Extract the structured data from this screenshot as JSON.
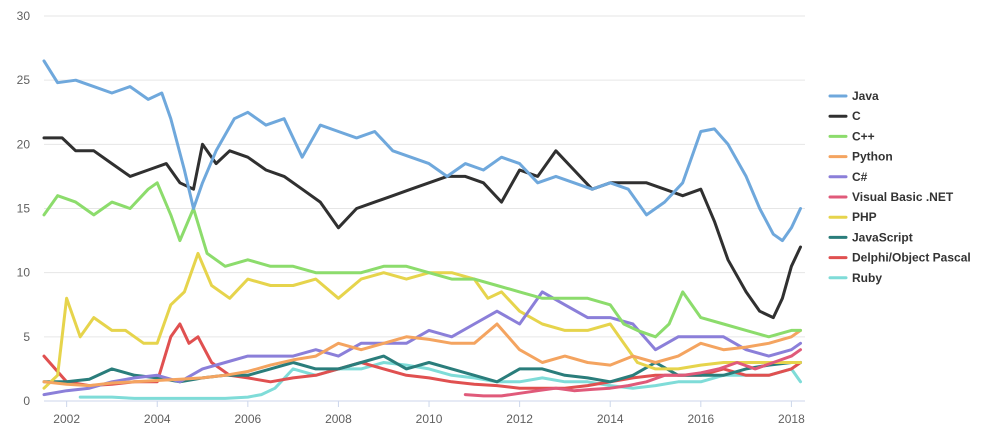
{
  "chart_data": {
    "type": "line",
    "title": "",
    "xlabel": "",
    "ylabel": "",
    "xlim": [
      2001.5,
      2018.3
    ],
    "ylim": [
      0,
      30
    ],
    "x_ticks": [
      "2002",
      "2004",
      "2006",
      "2008",
      "2010",
      "2012",
      "2014",
      "2016",
      "2018"
    ],
    "y_ticks": [
      "0",
      "5",
      "10",
      "15",
      "20",
      "25",
      "30"
    ],
    "grid": true,
    "legend_position": "right",
    "series": [
      {
        "name": "Java",
        "color": "#6fa8dc",
        "x": [
          2001.5,
          2001.8,
          2002.2,
          2002.6,
          2003.0,
          2003.4,
          2003.8,
          2004.1,
          2004.3,
          2004.6,
          2004.8,
          2005.0,
          2005.3,
          2005.7,
          2006.0,
          2006.4,
          2006.8,
          2007.2,
          2007.6,
          2008.0,
          2008.4,
          2008.8,
          2009.2,
          2009.6,
          2010.0,
          2010.4,
          2010.8,
          2011.2,
          2011.6,
          2012.0,
          2012.4,
          2012.8,
          2013.2,
          2013.6,
          2014.0,
          2014.4,
          2014.8,
          2015.2,
          2015.6,
          2016.0,
          2016.3,
          2016.6,
          2017.0,
          2017.3,
          2017.6,
          2017.8,
          2018.0,
          2018.2
        ],
        "values": [
          26.5,
          24.8,
          25.0,
          24.5,
          24.0,
          24.5,
          23.5,
          24.0,
          22.0,
          18.0,
          15.0,
          17.0,
          19.5,
          22.0,
          22.5,
          21.5,
          22.0,
          19.0,
          21.5,
          21.0,
          20.5,
          21.0,
          19.5,
          19.0,
          18.5,
          17.5,
          18.5,
          18.0,
          19.0,
          18.5,
          17.0,
          17.5,
          17.0,
          16.5,
          17.0,
          16.5,
          14.5,
          15.5,
          17.0,
          21.0,
          21.2,
          20.0,
          17.5,
          15.0,
          13.0,
          12.5,
          13.5,
          15.0
        ]
      },
      {
        "name": "C",
        "color": "#303030",
        "x": [
          2001.5,
          2001.9,
          2002.2,
          2002.6,
          2003.0,
          2003.4,
          2003.8,
          2004.2,
          2004.5,
          2004.8,
          2005.0,
          2005.3,
          2005.6,
          2006.0,
          2006.4,
          2006.8,
          2007.2,
          2007.6,
          2008.0,
          2008.4,
          2008.8,
          2009.2,
          2009.6,
          2010.0,
          2010.4,
          2010.8,
          2011.2,
          2011.6,
          2012.0,
          2012.4,
          2012.8,
          2013.2,
          2013.6,
          2014.0,
          2014.4,
          2014.8,
          2015.2,
          2015.6,
          2016.0,
          2016.3,
          2016.6,
          2017.0,
          2017.3,
          2017.6,
          2017.8,
          2018.0,
          2018.2
        ],
        "values": [
          20.5,
          20.5,
          19.5,
          19.5,
          18.5,
          17.5,
          18.0,
          18.5,
          17.0,
          16.5,
          20.0,
          18.5,
          19.5,
          19.0,
          18.0,
          17.5,
          16.5,
          15.5,
          13.5,
          15.0,
          15.5,
          16.0,
          16.5,
          17.0,
          17.5,
          17.5,
          17.0,
          15.5,
          18.0,
          17.5,
          19.5,
          18.0,
          16.5,
          17.0,
          17.0,
          17.0,
          16.5,
          16.0,
          16.5,
          14.0,
          11.0,
          8.5,
          7.0,
          6.5,
          8.0,
          10.5,
          12.0
        ]
      },
      {
        "name": "C++",
        "color": "#8cdc6c",
        "x": [
          2001.5,
          2001.8,
          2002.2,
          2002.6,
          2003.0,
          2003.4,
          2003.8,
          2004.0,
          2004.3,
          2004.5,
          2004.8,
          2005.1,
          2005.5,
          2006.0,
          2006.5,
          2007.0,
          2007.5,
          2008.0,
          2008.5,
          2009.0,
          2009.5,
          2010.0,
          2010.5,
          2011.0,
          2011.5,
          2012.0,
          2012.5,
          2013.0,
          2013.5,
          2014.0,
          2014.3,
          2014.6,
          2015.0,
          2015.3,
          2015.6,
          2016.0,
          2016.5,
          2017.0,
          2017.5,
          2018.0,
          2018.2
        ],
        "values": [
          14.5,
          16.0,
          15.5,
          14.5,
          15.5,
          15.0,
          16.5,
          17.0,
          14.5,
          12.5,
          15.0,
          11.5,
          10.5,
          11.0,
          10.5,
          10.5,
          10.0,
          10.0,
          10.0,
          10.5,
          10.5,
          10.0,
          9.5,
          9.5,
          9.0,
          8.5,
          8.0,
          8.0,
          8.0,
          7.5,
          6.0,
          5.5,
          5.0,
          6.0,
          8.5,
          6.5,
          6.0,
          5.5,
          5.0,
          5.5,
          5.5
        ]
      },
      {
        "name": "Python",
        "color": "#f4a460",
        "x": [
          2001.5,
          2002.0,
          2002.5,
          2003.0,
          2003.5,
          2004.0,
          2004.5,
          2005.0,
          2005.5,
          2006.0,
          2006.5,
          2007.0,
          2007.5,
          2008.0,
          2008.5,
          2009.0,
          2009.5,
          2010.0,
          2010.5,
          2011.0,
          2011.5,
          2012.0,
          2012.5,
          2013.0,
          2013.5,
          2014.0,
          2014.5,
          2015.0,
          2015.5,
          2016.0,
          2016.5,
          2017.0,
          2017.5,
          2018.0,
          2018.2
        ],
        "values": [
          1.5,
          1.3,
          1.2,
          1.4,
          1.5,
          1.6,
          1.7,
          1.8,
          2.0,
          2.3,
          2.8,
          3.2,
          3.5,
          4.5,
          4.0,
          4.5,
          5.0,
          4.8,
          4.5,
          4.5,
          6.0,
          4.0,
          3.0,
          3.5,
          3.0,
          2.8,
          3.5,
          3.0,
          3.5,
          4.5,
          4.0,
          4.2,
          4.5,
          5.0,
          5.5
        ]
      },
      {
        "name": "C#",
        "color": "#8b7fd9",
        "x": [
          2001.5,
          2002.0,
          2002.5,
          2003.0,
          2003.5,
          2004.0,
          2004.5,
          2005.0,
          2005.5,
          2006.0,
          2006.5,
          2007.0,
          2007.5,
          2008.0,
          2008.5,
          2009.0,
          2009.5,
          2010.0,
          2010.5,
          2011.0,
          2011.5,
          2012.0,
          2012.5,
          2013.0,
          2013.5,
          2014.0,
          2014.5,
          2015.0,
          2015.5,
          2016.0,
          2016.5,
          2017.0,
          2017.5,
          2018.0,
          2018.2
        ],
        "values": [
          0.5,
          0.8,
          1.0,
          1.5,
          1.8,
          2.0,
          1.5,
          2.5,
          3.0,
          3.5,
          3.5,
          3.5,
          4.0,
          3.5,
          4.5,
          4.5,
          4.5,
          5.5,
          5.0,
          6.0,
          7.0,
          6.0,
          8.5,
          7.5,
          6.5,
          6.5,
          6.0,
          4.0,
          5.0,
          5.0,
          5.0,
          4.0,
          3.5,
          4.0,
          4.5
        ]
      },
      {
        "name": "Visual Basic .NET",
        "color": "#e05a7a",
        "x": [
          2010.8,
          2011.2,
          2011.6,
          2012.0,
          2012.4,
          2012.8,
          2013.2,
          2013.6,
          2014.0,
          2014.4,
          2014.8,
          2015.2,
          2015.6,
          2016.0,
          2016.4,
          2016.8,
          2017.2,
          2017.6,
          2018.0,
          2018.2
        ],
        "values": [
          0.5,
          0.4,
          0.4,
          0.6,
          0.8,
          1.0,
          0.8,
          0.9,
          1.0,
          1.2,
          1.5,
          2.0,
          2.0,
          2.2,
          2.5,
          3.0,
          2.5,
          3.0,
          3.5,
          4.0
        ]
      },
      {
        "name": "PHP",
        "color": "#e6d44c",
        "x": [
          2001.5,
          2001.8,
          2002.0,
          2002.3,
          2002.6,
          2003.0,
          2003.3,
          2003.7,
          2004.0,
          2004.3,
          2004.6,
          2004.9,
          2005.2,
          2005.6,
          2006.0,
          2006.5,
          2007.0,
          2007.5,
          2008.0,
          2008.5,
          2009.0,
          2009.5,
          2010.0,
          2010.5,
          2011.0,
          2011.3,
          2011.6,
          2012.0,
          2012.5,
          2013.0,
          2013.5,
          2014.0,
          2014.3,
          2014.6,
          2015.0,
          2015.5,
          2016.0,
          2016.5,
          2017.0,
          2017.5,
          2018.0,
          2018.2
        ],
        "values": [
          1.0,
          2.0,
          8.0,
          5.0,
          6.5,
          5.5,
          5.5,
          4.5,
          4.5,
          7.5,
          8.5,
          11.5,
          9.0,
          8.0,
          9.5,
          9.0,
          9.0,
          9.5,
          8.0,
          9.5,
          10.0,
          9.5,
          10.0,
          10.0,
          9.5,
          8.0,
          8.5,
          7.0,
          6.0,
          5.5,
          5.5,
          6.0,
          4.5,
          3.0,
          2.5,
          2.5,
          2.8,
          3.0,
          3.0,
          3.0,
          3.0,
          3.0
        ]
      },
      {
        "name": "JavaScript",
        "color": "#2a7d7b",
        "x": [
          2001.5,
          2002.0,
          2002.5,
          2003.0,
          2003.5,
          2004.0,
          2004.5,
          2005.0,
          2005.5,
          2006.0,
          2006.5,
          2007.0,
          2007.5,
          2008.0,
          2008.5,
          2009.0,
          2009.5,
          2010.0,
          2010.5,
          2011.0,
          2011.5,
          2012.0,
          2012.5,
          2013.0,
          2013.5,
          2014.0,
          2014.5,
          2015.0,
          2015.5,
          2016.0,
          2016.5,
          2017.0,
          2017.5,
          2018.0,
          2018.2
        ],
        "values": [
          1.5,
          1.5,
          1.7,
          2.5,
          2.0,
          1.8,
          1.5,
          1.8,
          2.0,
          2.0,
          2.5,
          3.0,
          2.5,
          2.5,
          3.0,
          3.5,
          2.5,
          3.0,
          2.5,
          2.0,
          1.5,
          2.5,
          2.5,
          2.0,
          1.8,
          1.5,
          2.0,
          3.0,
          2.0,
          2.0,
          2.0,
          2.5,
          2.8,
          3.0,
          3.0
        ]
      },
      {
        "name": "Delphi/Object Pascal",
        "color": "#e05050",
        "x": [
          2001.5,
          2002.0,
          2002.5,
          2003.0,
          2003.5,
          2004.0,
          2004.3,
          2004.5,
          2004.7,
          2004.9,
          2005.2,
          2005.6,
          2006.0,
          2006.5,
          2007.0,
          2007.5,
          2008.0,
          2008.5,
          2009.0,
          2009.5,
          2010.0,
          2010.5,
          2011.0,
          2011.5,
          2012.0,
          2012.5,
          2013.0,
          2013.5,
          2014.0,
          2014.5,
          2015.0,
          2015.5,
          2016.0,
          2016.5,
          2017.0,
          2017.5,
          2018.0,
          2018.2
        ],
        "values": [
          3.5,
          1.5,
          1.2,
          1.3,
          1.5,
          1.5,
          5.0,
          6.0,
          4.5,
          5.0,
          3.0,
          2.0,
          1.8,
          1.5,
          1.8,
          2.0,
          2.5,
          3.0,
          2.5,
          2.0,
          1.8,
          1.5,
          1.3,
          1.2,
          1.0,
          1.0,
          1.0,
          1.2,
          1.5,
          1.8,
          2.0,
          2.0,
          2.0,
          2.5,
          2.0,
          2.0,
          2.5,
          3.0
        ]
      },
      {
        "name": "Ruby",
        "color": "#7fdcd8",
        "x": [
          2002.3,
          2003.0,
          2003.5,
          2004.0,
          2004.5,
          2005.0,
          2005.5,
          2006.0,
          2006.3,
          2006.6,
          2007.0,
          2007.5,
          2008.0,
          2008.5,
          2009.0,
          2009.5,
          2010.0,
          2010.5,
          2011.0,
          2011.5,
          2012.0,
          2012.5,
          2013.0,
          2013.5,
          2014.0,
          2014.5,
          2015.0,
          2015.5,
          2016.0,
          2016.5,
          2017.0,
          2017.5,
          2018.0,
          2018.2
        ],
        "values": [
          0.3,
          0.3,
          0.2,
          0.2,
          0.2,
          0.2,
          0.2,
          0.3,
          0.5,
          1.0,
          2.5,
          2.0,
          2.5,
          2.5,
          3.0,
          2.8,
          2.5,
          2.0,
          1.8,
          1.5,
          1.5,
          1.8,
          1.5,
          1.5,
          1.2,
          1.0,
          1.2,
          1.5,
          1.5,
          2.0,
          2.0,
          2.0,
          2.5,
          1.5
        ]
      }
    ]
  }
}
